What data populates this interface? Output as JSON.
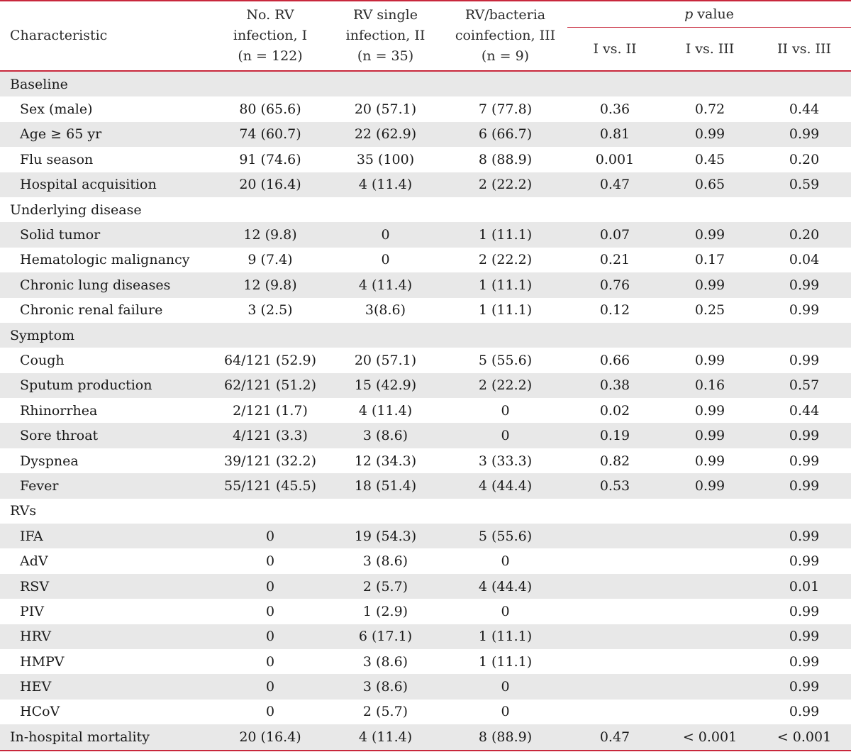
{
  "header": {
    "characteristic": "Characteristic",
    "col_i": [
      "No. RV",
      "infection, I",
      "(n = 122)"
    ],
    "col_ii": [
      "RV single",
      "infection, II",
      "(n = 35)"
    ],
    "col_iii": [
      "RV/bacteria",
      "coinfection, III",
      "(n = 9)"
    ],
    "p_label_italic": "p",
    "p_label_rest": " value",
    "p_sub": [
      "I vs. II",
      "I vs. III",
      "II vs. III"
    ]
  },
  "rows": [
    {
      "label": "Baseline",
      "type": "section",
      "cells": [
        "",
        "",
        "",
        "",
        "",
        ""
      ]
    },
    {
      "label": "Sex (male)",
      "type": "item",
      "cells": [
        "80 (65.6)",
        "20 (57.1)",
        "7 (77.8)",
        "0.36",
        "0.72",
        "0.44"
      ]
    },
    {
      "label": "Age ≥ 65 yr",
      "type": "item",
      "cells": [
        "74 (60.7)",
        "22 (62.9)",
        "6 (66.7)",
        "0.81",
        "0.99",
        "0.99"
      ]
    },
    {
      "label": "Flu season",
      "type": "item",
      "cells": [
        "91 (74.6)",
        "35 (100)",
        "8 (88.9)",
        "0.001",
        "0.45",
        "0.20"
      ]
    },
    {
      "label": "Hospital acquisition",
      "type": "item",
      "cells": [
        "20 (16.4)",
        "4 (11.4)",
        "2 (22.2)",
        "0.47",
        "0.65",
        "0.59"
      ]
    },
    {
      "label": "Underlying disease",
      "type": "section",
      "cells": [
        "",
        "",
        "",
        "",
        "",
        ""
      ]
    },
    {
      "label": "Solid tumor",
      "type": "item",
      "cells": [
        "12 (9.8)",
        "0",
        "1 (11.1)",
        "0.07",
        "0.99",
        "0.20"
      ]
    },
    {
      "label": "Hematologic malignancy",
      "type": "item",
      "cells": [
        "9 (7.4)",
        "0",
        "2 (22.2)",
        "0.21",
        "0.17",
        "0.04"
      ]
    },
    {
      "label": "Chronic lung diseases",
      "type": "item",
      "cells": [
        "12 (9.8)",
        "4 (11.4)",
        "1 (11.1)",
        "0.76",
        "0.99",
        "0.99"
      ]
    },
    {
      "label": "Chronic renal failure",
      "type": "item",
      "cells": [
        "3 (2.5)",
        "3(8.6)",
        "1 (11.1)",
        "0.12",
        "0.25",
        "0.99"
      ]
    },
    {
      "label": "Symptom",
      "type": "section",
      "cells": [
        "",
        "",
        "",
        "",
        "",
        ""
      ]
    },
    {
      "label": "Cough",
      "type": "item",
      "cells": [
        "64/121 (52.9)",
        "20 (57.1)",
        "5 (55.6)",
        "0.66",
        "0.99",
        "0.99"
      ]
    },
    {
      "label": "Sputum production",
      "type": "item",
      "cells": [
        "62/121 (51.2)",
        "15 (42.9)",
        "2 (22.2)",
        "0.38",
        "0.16",
        "0.57"
      ]
    },
    {
      "label": "Rhinorrhea",
      "type": "item",
      "cells": [
        "2/121 (1.7)",
        "4 (11.4)",
        "0",
        "0.02",
        "0.99",
        "0.44"
      ]
    },
    {
      "label": "Sore throat",
      "type": "item",
      "cells": [
        "4/121 (3.3)",
        "3 (8.6)",
        "0",
        "0.19",
        "0.99",
        "0.99"
      ]
    },
    {
      "label": "Dyspnea",
      "type": "item",
      "cells": [
        "39/121 (32.2)",
        "12 (34.3)",
        "3 (33.3)",
        "0.82",
        "0.99",
        "0.99"
      ]
    },
    {
      "label": "Fever",
      "type": "item",
      "cells": [
        "55/121 (45.5)",
        "18 (51.4)",
        "4 (44.4)",
        "0.53",
        "0.99",
        "0.99"
      ]
    },
    {
      "label": "RVs",
      "type": "section",
      "cells": [
        "",
        "",
        "",
        "",
        "",
        ""
      ]
    },
    {
      "label": "IFA",
      "type": "item",
      "cells": [
        "0",
        "19 (54.3)",
        "5 (55.6)",
        "",
        "",
        "0.99"
      ]
    },
    {
      "label": "AdV",
      "type": "item",
      "cells": [
        "0",
        "3 (8.6)",
        "0",
        "",
        "",
        "0.99"
      ]
    },
    {
      "label": "RSV",
      "type": "item",
      "cells": [
        "0",
        "2 (5.7)",
        "4 (44.4)",
        "",
        "",
        "0.01"
      ]
    },
    {
      "label": "PIV",
      "type": "item",
      "cells": [
        "0",
        "1 (2.9)",
        "0",
        "",
        "",
        "0.99"
      ]
    },
    {
      "label": "HRV",
      "type": "item",
      "cells": [
        "0",
        "6 (17.1)",
        "1 (11.1)",
        "",
        "",
        "0.99"
      ]
    },
    {
      "label": "HMPV",
      "type": "item",
      "cells": [
        "0",
        "3 (8.6)",
        "1 (11.1)",
        "",
        "",
        "0.99"
      ]
    },
    {
      "label": "HEV",
      "type": "item",
      "cells": [
        "0",
        "3 (8.6)",
        "0",
        "",
        "",
        "0.99"
      ]
    },
    {
      "label": "HCoV",
      "type": "item",
      "cells": [
        "0",
        "2 (5.7)",
        "0",
        "",
        "",
        "0.99"
      ]
    },
    {
      "label": "In-hospital mortality",
      "type": "section",
      "cells": [
        "20 (16.4)",
        "4 (11.4)",
        "8 (88.9)",
        "0.47",
        "< 0.001",
        "< 0.001"
      ]
    }
  ]
}
